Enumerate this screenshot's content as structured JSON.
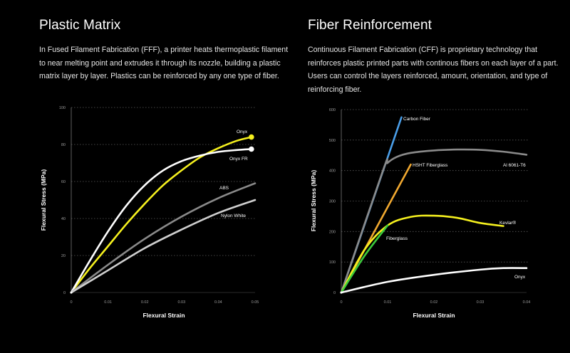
{
  "left_panel": {
    "title": "Plastic Matrix",
    "description": "In Fused Filament Fabrication (FFF), a printer heats thermoplastic filament to near melting point and extrudes it through its nozzle, building a plastic matrix layer by layer. Plastics can be reinforced by any one type of fiber."
  },
  "right_panel": {
    "title": "Fiber Reinforcement",
    "description": "Continuous Filament Fabrication (CFF) is proprietary technology that reinforces plastic printed parts with continous fibers on each layer of a part. Users can control the layers reinforced, amount, orientation, and type of reinforcing fiber."
  },
  "chart_data": [
    {
      "type": "line",
      "title": "",
      "xlabel": "Flexural Strain",
      "ylabel": "Flexural Stress (MPa)",
      "xlim": [
        0,
        0.05
      ],
      "ylim": [
        0,
        100
      ],
      "x_ticks": [
        "0",
        "0.01",
        "0.02",
        "0.03",
        "0.04",
        "0.05"
      ],
      "y_ticks": [
        "0",
        "20",
        "40",
        "60",
        "80",
        "100"
      ],
      "grid": "horizontal dotted",
      "series": [
        {
          "name": "Onyx",
          "color": "#f5f01e",
          "x": [
            0,
            0.005,
            0.01,
            0.015,
            0.02,
            0.025,
            0.03,
            0.035,
            0.04,
            0.045,
            0.049
          ],
          "y": [
            0,
            13,
            25,
            37,
            48,
            58,
            66,
            73,
            78,
            82,
            84
          ],
          "end_marker": true
        },
        {
          "name": "Onyx FR",
          "color": "#ffffff",
          "x": [
            0,
            0.005,
            0.01,
            0.015,
            0.02,
            0.025,
            0.03,
            0.035,
            0.04,
            0.045,
            0.049
          ],
          "y": [
            0,
            17,
            33,
            47,
            58,
            66,
            71,
            74,
            76,
            77,
            77.5
          ],
          "end_marker": true
        },
        {
          "name": "ABS",
          "color": "#8a8a8a",
          "x": [
            0,
            0.01,
            0.02,
            0.03,
            0.04,
            0.05
          ],
          "y": [
            0,
            15,
            29,
            41,
            51,
            59
          ]
        },
        {
          "name": "Nylon White",
          "color": "#cfcfcf",
          "x": [
            0,
            0.01,
            0.02,
            0.03,
            0.04,
            0.05
          ],
          "y": [
            0,
            12,
            24,
            34,
            43,
            50
          ]
        }
      ]
    },
    {
      "type": "line",
      "title": "",
      "xlabel": "Flexural Strain",
      "ylabel": "Flexural Stress (MPa)",
      "xlim": [
        0,
        0.04
      ],
      "ylim": [
        0,
        600
      ],
      "x_ticks": [
        "0",
        "0.01",
        "0.02",
        "0.03",
        "0.04"
      ],
      "y_ticks": [
        "0",
        "100",
        "200",
        "300",
        "400",
        "500",
        "600"
      ],
      "grid": "horizontal dotted",
      "series": [
        {
          "name": "Carbon Fiber",
          "color": "#4a9ee8",
          "x": [
            0,
            0.013
          ],
          "y": [
            0,
            575
          ]
        },
        {
          "name": "Al 6061-T6",
          "color": "#8a8a8a",
          "x": [
            0,
            0.009,
            0.01,
            0.012,
            0.015,
            0.02,
            0.025,
            0.03,
            0.035,
            0.04
          ],
          "y": [
            0,
            400,
            425,
            445,
            458,
            466,
            469,
            468,
            462,
            452
          ]
        },
        {
          "name": "HSHT Fiberglass",
          "color": "#f0a830",
          "x": [
            0,
            0.015
          ],
          "y": [
            0,
            420
          ]
        },
        {
          "name": "Kevlar®",
          "color": "#f5f01e",
          "x": [
            0,
            0.005,
            0.01,
            0.015,
            0.02,
            0.025,
            0.03,
            0.035
          ],
          "y": [
            0,
            140,
            220,
            248,
            252,
            245,
            228,
            218
          ]
        },
        {
          "name": "Fiberglass",
          "color": "#3ccc3c",
          "x": [
            0,
            0.005,
            0.01
          ],
          "y": [
            0,
            120,
            220
          ]
        },
        {
          "name": "Onyx",
          "color": "#ffffff",
          "x": [
            0,
            0.01,
            0.02,
            0.03,
            0.035,
            0.04
          ],
          "y": [
            0,
            35,
            58,
            75,
            80,
            80
          ]
        }
      ]
    }
  ]
}
